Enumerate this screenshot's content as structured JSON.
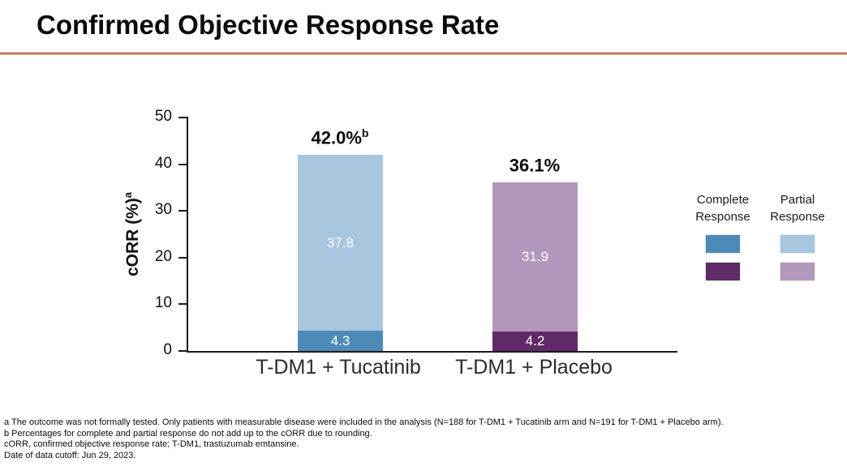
{
  "slide": {
    "title": "Confirmed Objective Response Rate"
  },
  "colors": {
    "title_rule": "#c0775c",
    "series": {
      "tucatinib_complete": "#4e8ab8",
      "tucatinib_partial": "#a9c6df",
      "placebo_complete": "#5f2a67",
      "placebo_partial": "#b298bc"
    }
  },
  "chart_data": {
    "type": "bar",
    "stacked": true,
    "title": "Confirmed Objective Response Rate",
    "ylabel": "cORR (%)",
    "ylabel_superscript": "a",
    "ylim": [
      0,
      50
    ],
    "yticks": [
      0,
      10,
      20,
      30,
      40,
      50
    ],
    "grid": false,
    "legend_position": "right",
    "categories": [
      "T-DM1 + Tucatinib",
      "T-DM1 + Placebo"
    ],
    "series": [
      {
        "name": "Complete Response",
        "values": [
          4.3,
          4.2
        ]
      },
      {
        "name": "Partial Response",
        "values": [
          37.8,
          31.9
        ]
      }
    ],
    "totals": [
      {
        "value": 42.0,
        "label": "42.0%",
        "superscript": "b"
      },
      {
        "value": 36.1,
        "label": "36.1%",
        "superscript": ""
      }
    ]
  },
  "footnotes": [
    "a The outcome was not formally tested. Only patients with measurable disease were included in the analysis (N=188 for T-DM1 + Tucatinib arm and N=191 for T-DM1 + Placebo arm).",
    "b Percentages for complete and partial response do not add up to the cORR due to rounding.",
    "cORR, confirmed objective response rate; T-DM1, trastuzumab emtansine.",
    "Date of data cutoff: Jun 29, 2023."
  ]
}
